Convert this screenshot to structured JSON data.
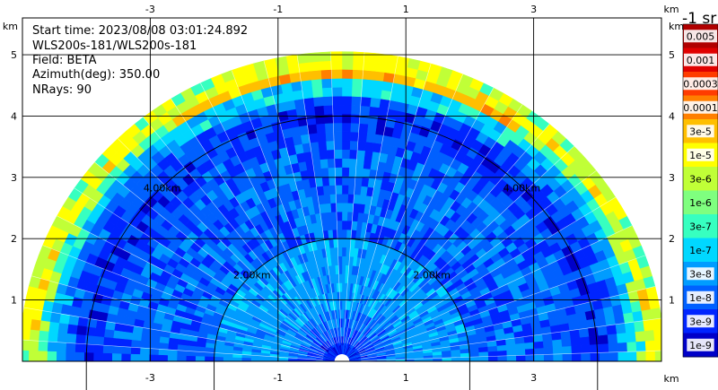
{
  "info": {
    "start_time": "Start time: 2023/08/08 03:01:24.892",
    "instrument": "WLS200s-181/WLS200s-181",
    "field": "Field: BETA",
    "azimuth": "Azimuth(deg): 350.00",
    "nrays": "NRays: 90"
  },
  "chart_data": {
    "type": "heatmap",
    "projection": "polar-rhi",
    "field": "BETA",
    "xlim": [
      -5.0,
      5.0
    ],
    "ylim": [
      0,
      5.6
    ],
    "x_ticks": [
      -3,
      -1,
      1,
      3
    ],
    "x_tick_labels": [
      "-3",
      "-1",
      "1",
      "3"
    ],
    "y_ticks": [
      1,
      2,
      3,
      4,
      5
    ],
    "y_tick_labels": [
      "1",
      "2",
      "3",
      "4",
      "5"
    ],
    "axis_unit_label": "km",
    "grid": true,
    "max_range_km": 5.05,
    "range_rings_km": [
      2.0,
      4.0
    ],
    "range_ring_labels": [
      "2.00km",
      "4.00km"
    ],
    "colorbar": {
      "unit_label": "-1 sr",
      "labels": [
        "0.005",
        "0.001",
        "0.0003",
        "0.0001",
        "3e-5",
        "1e-5",
        "3e-6",
        "1e-6",
        "3e-7",
        "1e-7",
        "3e-8",
        "1e-8",
        "3e-9",
        "1e-9"
      ],
      "colors": [
        "#7f0000",
        "#b00000",
        "#e00000",
        "#ff3c00",
        "#ff7f00",
        "#ffbf00",
        "#ffff00",
        "#c0ff37",
        "#7fff7f",
        "#37ffc0",
        "#00d8ff",
        "#009cff",
        "#0060ff",
        "#0024ff",
        "#0000c8",
        "#00007f"
      ]
    },
    "profile_scale": [
      "1e-9",
      "3e-9",
      "1e-8",
      "3e-8",
      "1e-7",
      "3e-7",
      "1e-6",
      "3e-6",
      "1e-5",
      "3e-5",
      "0.0001",
      "0.0003",
      "0.001",
      "0.005"
    ],
    "profile": {
      "range_km": [
        0.0,
        0.3,
        0.6,
        1.0,
        1.5,
        2.0,
        2.5,
        3.0,
        3.5,
        4.0,
        4.3,
        4.6,
        4.8,
        5.05
      ],
      "beta": [
        "1e-8",
        "1e-8",
        "3e-8",
        "1e-7",
        "1e-7",
        "3e-8",
        "3e-8",
        "3e-8",
        "3e-8",
        "1e-8",
        "3e-8",
        "3e-7",
        "1e-5",
        "3e-6"
      ]
    },
    "layers": [
      {
        "range_km": [
          4.55,
          4.85
        ],
        "elev_deg": [
          60,
          120
        ],
        "beta": "1e-5"
      },
      {
        "range_km": [
          4.6,
          4.75
        ],
        "elev_deg": [
          55,
          125
        ],
        "beta": "3e-5"
      },
      {
        "range_km": [
          4.3,
          4.55
        ],
        "elev_deg": [
          55,
          125
        ],
        "beta": "3e-7"
      },
      {
        "range_km": [
          0.9,
          2.0
        ],
        "elev_deg": [
          0,
          180
        ],
        "beta": "1e-7"
      }
    ]
  }
}
